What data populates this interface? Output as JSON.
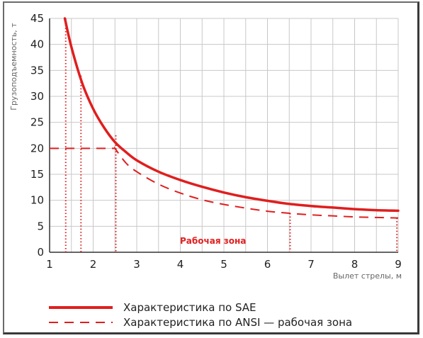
{
  "chart_data": {
    "type": "line",
    "ylabel": "Грузоподъемность, т",
    "xlabel": "Вылет стрелы, м",
    "xlim": [
      1,
      9
    ],
    "ylim": [
      0,
      45
    ],
    "x_ticks": [
      "1",
      "2",
      "3",
      "4",
      "5",
      "6",
      "7",
      "8",
      "9"
    ],
    "y_ticks": [
      "0",
      "5",
      "10",
      "15",
      "20",
      "25",
      "30",
      "35",
      "40",
      "45"
    ],
    "grid": true,
    "zone_label": "Рабочая зона",
    "legend_position": "bottom",
    "colors": {
      "curve": "#e01e1e",
      "grid": "#c8c8c8"
    },
    "series": [
      {
        "name": "Характеристика по SAE",
        "style": "solid",
        "x": [
          1.35,
          1.5,
          1.75,
          2.0,
          2.25,
          2.5,
          2.75,
          3.0,
          3.5,
          4.0,
          4.5,
          5.0,
          5.5,
          6.0,
          6.5,
          7.0,
          7.5,
          8.0,
          8.5,
          9.0
        ],
        "y": [
          45,
          39.5,
          32.5,
          27.6,
          24.0,
          21.2,
          19.3,
          17.7,
          15.5,
          13.9,
          12.6,
          11.5,
          10.6,
          9.9,
          9.3,
          8.9,
          8.6,
          8.3,
          8.1,
          8.0
        ]
      },
      {
        "name": "Характеристика по ANSI — рабочая зона",
        "style": "dashed",
        "x": [
          1.0,
          2.5,
          2.75,
          3.0,
          3.5,
          4.0,
          4.5,
          5.0,
          5.5,
          6.0,
          6.5,
          7.0,
          7.5,
          8.0,
          8.5,
          9.0
        ],
        "y": [
          20,
          20,
          17.2,
          15.5,
          13.1,
          11.4,
          10.1,
          9.2,
          8.5,
          7.9,
          7.5,
          7.2,
          7.0,
          6.8,
          6.7,
          6.6
        ]
      }
    ],
    "reference_lines": [
      {
        "x": 1.37,
        "y": 45
      },
      {
        "x": 1.72,
        "y": 34
      },
      {
        "x": 2.52,
        "y": 22.5
      },
      {
        "x": 6.52,
        "y": 7.5
      },
      {
        "x": 8.97,
        "y": 6.6
      }
    ]
  }
}
